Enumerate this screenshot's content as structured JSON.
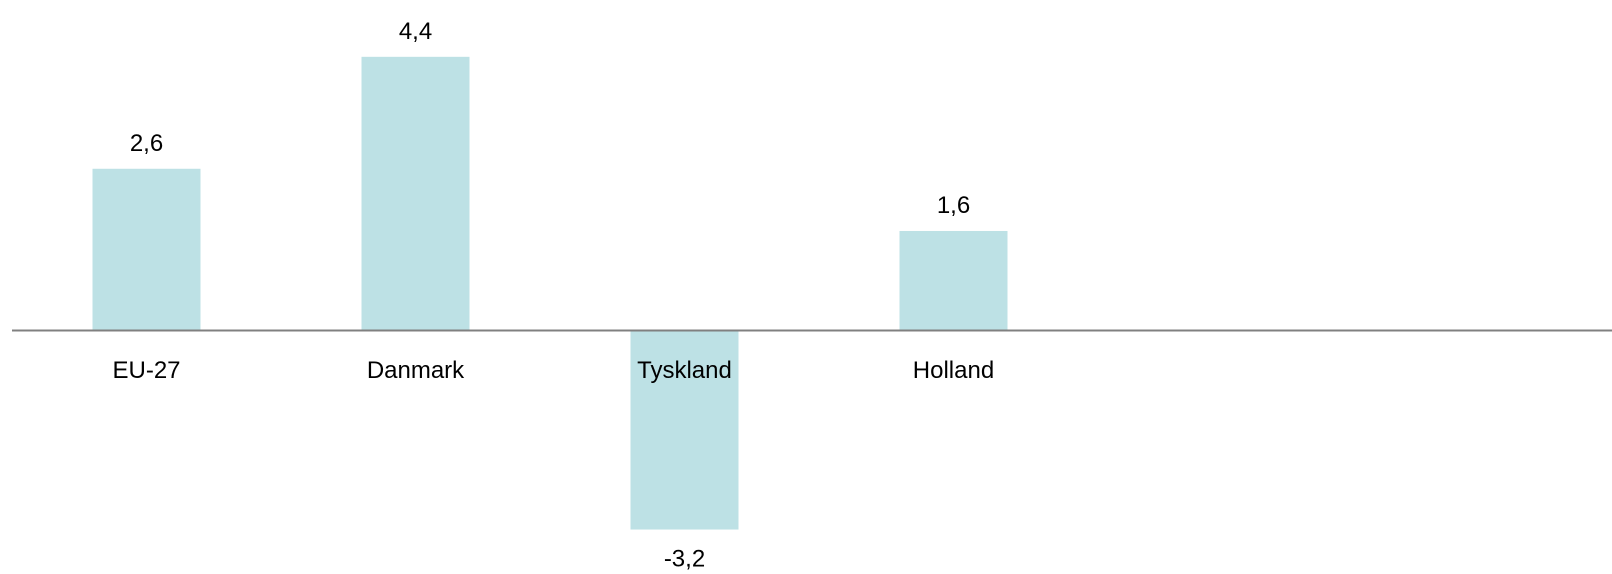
{
  "chart_data": {
    "type": "bar",
    "categories": [
      "EU-27",
      "Danmark",
      "Tyskland",
      "Holland"
    ],
    "values": [
      2.6,
      4.4,
      -3.2,
      1.6
    ],
    "value_labels": [
      "2,6",
      "4,4",
      "-3,2",
      "1,6"
    ],
    "title": "",
    "xlabel": "",
    "ylabel": "",
    "ylim": [
      -4.0,
      5.0
    ],
    "grid": false,
    "legend": "none",
    "colors": {
      "bar": "#bde1e5",
      "axis": "#808080"
    }
  }
}
